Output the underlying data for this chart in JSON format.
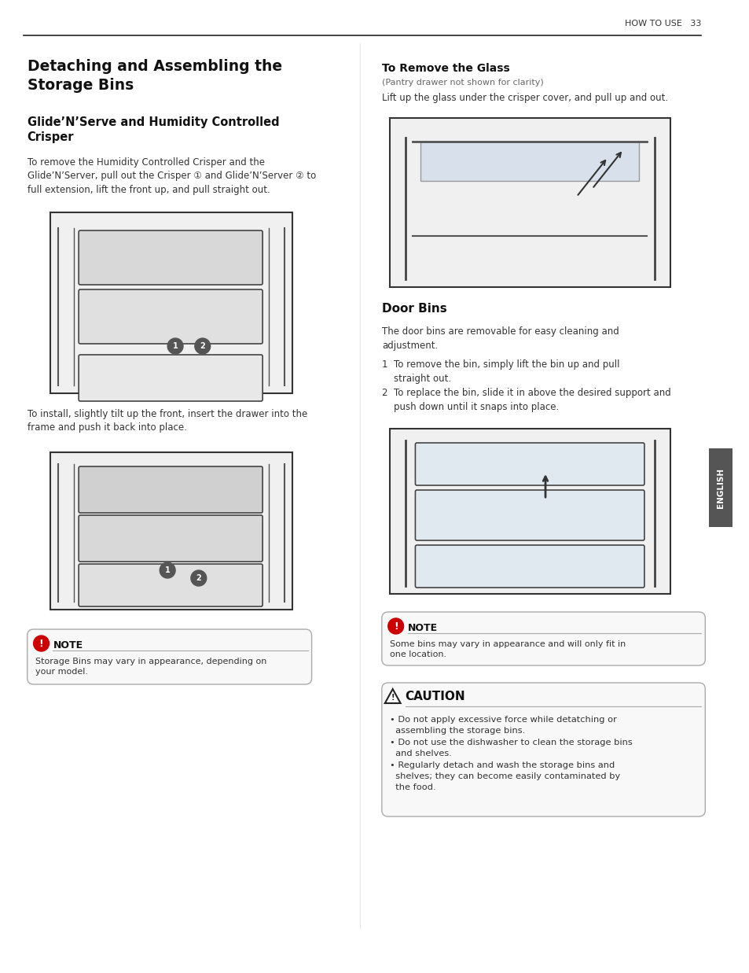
{
  "bg_color": "#ffffff",
  "page_width": 9.54,
  "page_height": 12.37,
  "header_text": "HOW TO USE   33",
  "main_title": "Detaching and Assembling the\nStorage Bins",
  "subtitle1": "Glide’N’Serve and Humidity Controlled\nCrisper",
  "body1": "To remove the Humidity Controlled Crisper and the\nGlide’N’Server, pull out the Crisper ① and Glide’N’Server ② to\nfull extension, lift the front up, and pull straight out.",
  "install_text": "To install, slightly tilt up the front, insert the drawer into the\nframe and push it back into place.",
  "note1_title": "NOTE",
  "note1_body": "Storage Bins may vary in appearance, depending on\nyour model.",
  "right_title1": "To Remove the Glass",
  "right_subtitle1": "(Pantry drawer not shown for clarity)",
  "right_body1": "Lift up the glass under the crisper cover, and pull up and out.",
  "door_bins_title": "Door Bins",
  "door_bins_body": "The door bins are removable for easy cleaning and\nadjustment.",
  "step1": "1  To remove the bin, simply lift the bin up and pull\n    straight out.",
  "step2": "2  To replace the bin, slide it in above the desired support and\n    push down until it snaps into place.",
  "note2_title": "NOTE",
  "note2_body": "Some bins may vary in appearance and will only fit in\none location.",
  "caution_title": "CAUTION",
  "caution_body": "• Do not apply excessive force while detatching or\n  assembling the storage bins.\n• Do not use the dishwasher to clean the storage bins\n  and shelves.\n• Regularly detach and wash the storage bins and\n  shelves; they can become easily contaminated by\n  the food.",
  "english_label": "ENGLISH",
  "text_color": "#333333",
  "light_gray": "#cccccc",
  "mid_gray": "#888888",
  "dark_gray": "#555555"
}
